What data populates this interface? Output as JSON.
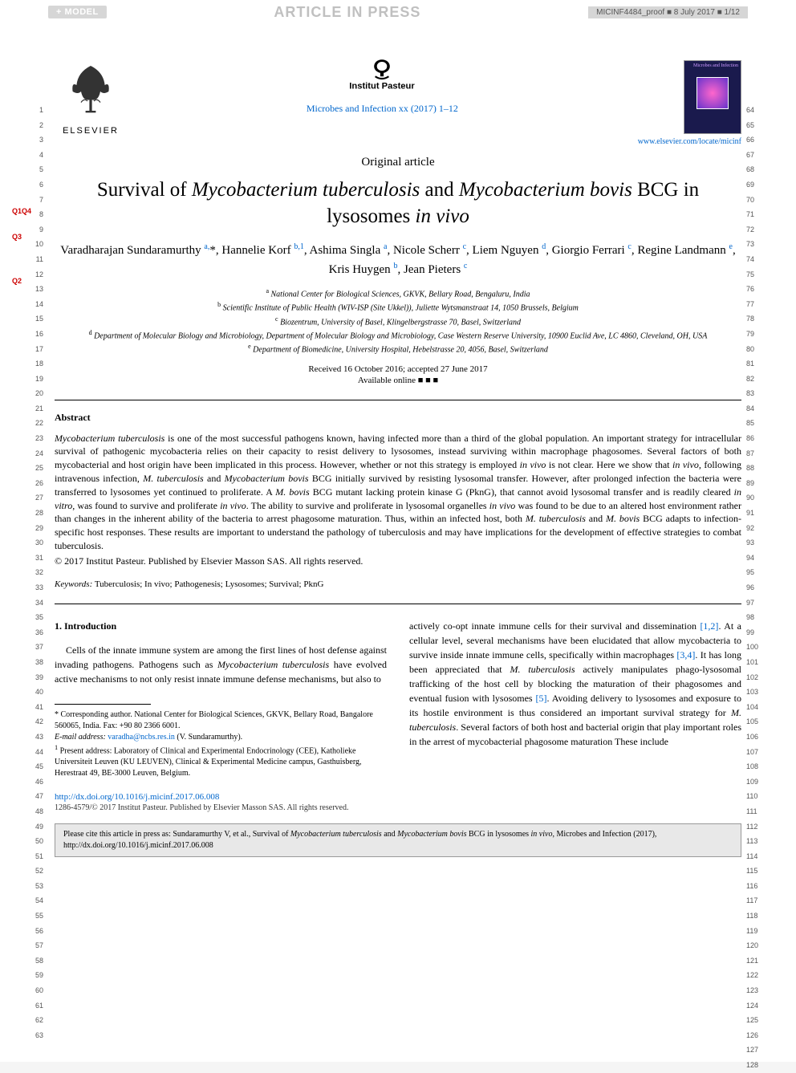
{
  "header": {
    "model_badge": "+ MODEL",
    "article_in_press": "ARTICLE IN PRESS",
    "proof_info": "MICINF4484_proof ■ 8 July 2017 ■ 1/12",
    "elsevier_label": "ELSEVIER",
    "journal_ref": "Microbes and Infection xx (2017) 1–12",
    "journal_link": "www.elsevier.com/locate/micinf",
    "cover_title": "Microbes and Infection"
  },
  "article": {
    "type": "Original article",
    "title_pre": "Survival of ",
    "title_sp1": "Mycobacterium tuberculosis",
    "title_mid": " and ",
    "title_sp2": "Mycobacterium bovis",
    "title_post": " BCG in lysosomes ",
    "title_invivo": "in vivo",
    "authors_html": "Varadharajan Sundaramurthy <sup>a,</sup>*, Hannelie Korf <sup>b,1</sup>, Ashima Singla <sup>a</sup>, Nicole Scherr <sup>c</sup>, Liem Nguyen <sup>d</sup>, Giorgio Ferrari <sup>c</sup>, Regine Landmann <sup>e</sup>, Kris Huygen <sup>b</sup>, Jean Pieters <sup>c</sup>",
    "aff_a": "a National Center for Biological Sciences, GKVK, Bellary Road, Bengaluru, India",
    "aff_b": "b Scientific Institute of Public Health (WIV-ISP (Site Ukkel)), Juliette Wytsmanstraat 14, 1050 Brussels, Belgium",
    "aff_c": "c Biozentrum, University of Basel, Klingelbergstrasse 70, Basel, Switzerland",
    "aff_d": "d Department of Molecular Biology and Microbiology, Department of Molecular Biology and Microbiology, Case Western Reserve University, 10900 Euclid Ave, LC 4860, Cleveland, OH, USA",
    "aff_e": "e Department of Biomedicine, University Hospital, Hebelstrasse 20, 4056, Basel, Switzerland",
    "received": "Received 16 October 2016; accepted 27 June 2017",
    "available": "Available online ■ ■ ■"
  },
  "abstract": {
    "head": "Abstract",
    "body": "<span class=\"italic\">Mycobacterium tuberculosis</span> is one of the most successful pathogens known, having infected more than a third of the global population. An important strategy for intracellular survival of pathogenic mycobacteria relies on their capacity to resist delivery to lysosomes, instead surviving within macrophage phagosomes. Several factors of both mycobacterial and host origin have been implicated in this process. However, whether or not this strategy is employed <span class=\"italic\">in vivo</span> is not clear. Here we show that <span class=\"italic\">in vivo,</span> following intravenous infection, <span class=\"italic\">M. tuberculosis</span> and <span class=\"italic\">Mycobacterium bovis</span> BCG initially survived by resisting lysosomal transfer. However, after prolonged infection the bacteria were transferred to lysosomes yet continued to proliferate. A <span class=\"italic\">M. bovis</span> BCG mutant lacking protein kinase G (PknG), that cannot avoid lysosomal transfer and is readily cleared <span class=\"italic\">in vitro</span>, was found to survive and proliferate <span class=\"italic\">in vivo</span>. The ability to survive and proliferate in lysosomal organelles <span class=\"italic\">in vivo</span> was found to be due to an altered host environment rather than changes in the inherent ability of the bacteria to arrest phagosome maturation. Thus, within an infected host, both <span class=\"italic\">M. tuberculosis</span> and <span class=\"italic\">M. bovis</span> BCG adapts to infection-specific host responses. These results are important to understand the pathology of tuberculosis and may have implications for the development of effective strategies to combat tuberculosis.",
    "copyright": "© 2017 Institut Pasteur. Published by Elsevier Masson SAS. All rights reserved.",
    "keywords_label": "Keywords:",
    "keywords": " Tuberculosis; In vivo; Pathogenesis; Lysosomes; Survival; PknG"
  },
  "body": {
    "section1_head": "1. Introduction",
    "col1_para": "Cells of the innate immune system are among the first lines of host defense against invading pathogens. Pathogens such as <span class=\"italic\">Mycobacterium tuberculosis</span> have evolved active mechanisms to not only resist innate immune defense mechanisms, but also to",
    "col2_para": "actively co-opt innate immune cells for their survival and dissemination <span class=\"ref-link\">[1,2]</span>. At a cellular level, several mechanisms have been elucidated that allow mycobacteria to survive inside innate immune cells, specifically within macrophages <span class=\"ref-link\">[3,4]</span>. It has long been appreciated that <span class=\"italic\">M. tuberculosis</span> actively manipulates phago-lysosomal trafficking of the host cell by blocking the maturation of their phagosomes and eventual fusion with lysosomes <span class=\"ref-link\">[5]</span>. Avoiding delivery to lysosomes and exposure to its hostile environment is thus considered an important survival strategy for <span class=\"italic\">M. tuberculosis</span>. Several factors of both host and bacterial origin that play important roles in the arrest of mycobacterial phagosome maturation These include"
  },
  "footnotes": {
    "corr": "* Corresponding author. National Center for Biological Sciences, GKVK, Bellary Road, Bangalore 560065, India. Fax: +90 80 2366 6001.",
    "email_label": "E-mail address: ",
    "email": "varadha@ncbs.res.in",
    "email_tail": " (V. Sundaramurthy).",
    "present": "1 Present address: Laboratory of Clinical and Experimental Endocrinology (CEE), Katholieke Universiteit Leuven (KU LEUVEN), Clinical & Experimental Medicine campus, Gasthuisberg, Herestraat 49, BE-3000 Leuven, Belgium."
  },
  "footer": {
    "doi": "http://dx.doi.org/10.1016/j.micinf.2017.06.008",
    "issn": "1286-4579/© 2017 Institut Pasteur. Published by Elsevier Masson SAS. All rights reserved.",
    "cite": "Please cite this article in press as: Sundaramurthy V, et al., Survival of <span class=\"italic\">Mycobacterium tuberculosis</span> and <span class=\"italic\">Mycobacterium bovis</span> BCG in lysosomes <span class=\"italic\">in vivo</span>, Microbes and Infection (2017), http://dx.doi.org/10.1016/j.micinf.2017.06.008"
  },
  "q_marks": {
    "q1q4": "Q1Q4",
    "q3": "Q3",
    "q2": "Q2"
  },
  "line_numbers": {
    "left_start": 1,
    "left_end": 63,
    "right_start": 64,
    "right_end": 128
  },
  "colors": {
    "link": "#0066cc",
    "badge_bg": "#d6d6d6",
    "press_text": "#c0c0c0",
    "qmark": "#c00",
    "cover_bg": "#1a1a4d",
    "citebox_bg": "#e8e8e8"
  }
}
